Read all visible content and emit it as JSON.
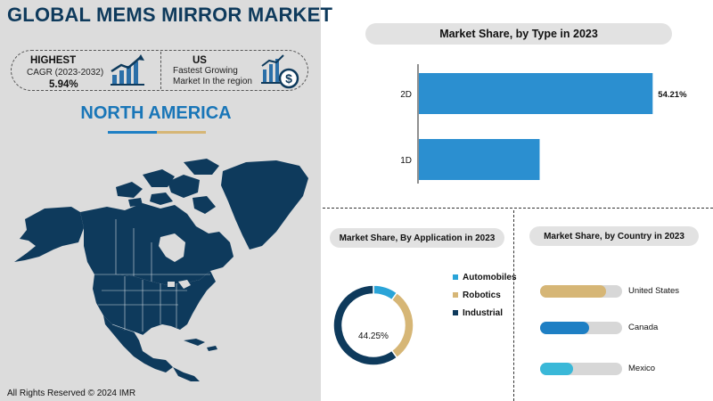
{
  "header": {
    "title": "GLOBAL MEMS MIRROR MARKET",
    "stat1_head": "HIGHEST",
    "stat1_sub": "CAGR (2023-2032)",
    "stat1_value": "5.94%",
    "stat2_head": "US",
    "stat2_sub1": "Fastest Growing",
    "stat2_sub2": "Market In the region",
    "region": "NORTH AMERICA",
    "copyright": "All Rights Reserved © 2024 IMR"
  },
  "colors": {
    "navy": "#0e3a5c",
    "blue": "#2b8fd0",
    "gold": "#d6b676",
    "light_blue": "#2aa4d8",
    "cyan": "#3ab8d8",
    "grey_track": "#d7d7d7"
  },
  "icons": [
    "growth-chart-icon",
    "dollar-chart-icon"
  ],
  "chart_data": [
    {
      "type": "bar",
      "orientation": "horizontal",
      "title": "Market Share, by Type in 2023",
      "categories": [
        "2D",
        "1D"
      ],
      "values": [
        54.21,
        28.0
      ],
      "labels": [
        "54.21%",
        ""
      ],
      "xlim": [
        0,
        62
      ]
    },
    {
      "type": "pie",
      "donut": true,
      "title": "Market Share, By Application in 2023",
      "categories": [
        "Automobiles",
        "Robotics",
        "Industrial"
      ],
      "values": [
        10,
        30,
        60
      ],
      "colors": [
        "#2aa4d8",
        "#d6b676",
        "#0e3a5c"
      ],
      "center_label": "44.25%"
    },
    {
      "type": "bar",
      "orientation": "horizontal",
      "title": "Market Share, by Country in 2023",
      "categories": [
        "United States",
        "Canada",
        "Mexico"
      ],
      "values": [
        80,
        60,
        40
      ],
      "colors": [
        "#d6b676",
        "#1e7fc4",
        "#3ab8d8"
      ],
      "xlim": [
        0,
        100
      ]
    }
  ]
}
